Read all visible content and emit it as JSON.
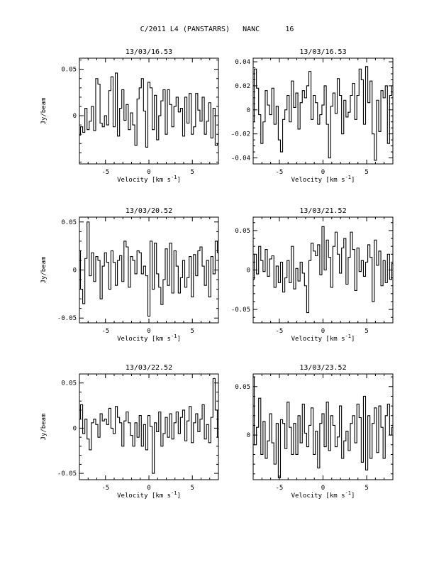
{
  "page_title": "C/2011 L4 (PANSTARRS)   NANC      16",
  "chart_data": [
    {
      "type": "line",
      "title": "13/03/16.53",
      "xlabel": "Velocity [km s",
      "xlabel_sup": "-1",
      "xlabel_end": "]",
      "ylabel": "Jy/beam",
      "xlim": [
        -8,
        8
      ],
      "ylim": [
        -0.052,
        0.062
      ],
      "xticks": [
        -5,
        0,
        5
      ],
      "xtick_labels": [
        "-5",
        "0",
        "5"
      ],
      "yticks": [
        0.05,
        0
      ],
      "ytick_labels": [
        "0.05",
        "0"
      ],
      "x": [
        -8.0,
        -7.75,
        -7.5,
        -7.25,
        -7.0,
        -6.75,
        -6.5,
        -6.25,
        -6.0,
        -5.75,
        -5.5,
        -5.25,
        -5.0,
        -4.75,
        -4.5,
        -4.25,
        -4.0,
        -3.75,
        -3.5,
        -3.25,
        -3.0,
        -2.75,
        -2.5,
        -2.25,
        -2.0,
        -1.75,
        -1.5,
        -1.25,
        -1.0,
        -0.75,
        -0.5,
        -0.25,
        0.0,
        0.25,
        0.5,
        0.75,
        1.0,
        1.25,
        1.5,
        1.75,
        2.0,
        2.25,
        2.5,
        2.75,
        3.0,
        3.25,
        3.5,
        3.75,
        4.0,
        4.25,
        4.5,
        4.75,
        5.0,
        5.25,
        5.5,
        5.75,
        6.0,
        6.25,
        6.5,
        6.75,
        7.0,
        7.25,
        7.5,
        7.75,
        8.0
      ],
      "y": [
        -0.021,
        -0.012,
        -0.018,
        0.008,
        -0.015,
        -0.006,
        0.01,
        -0.016,
        0.04,
        0.034,
        -0.008,
        -0.012,
        0.0,
        -0.01,
        0.027,
        0.042,
        -0.012,
        0.046,
        -0.022,
        0.008,
        0.028,
        -0.005,
        0.012,
        -0.015,
        0.003,
        -0.01,
        -0.032,
        0.018,
        0.03,
        0.04,
        0.005,
        -0.034,
        0.036,
        0.03,
        -0.015,
        0.022,
        -0.026,
        0.0,
        0.016,
        0.028,
        -0.02,
        0.028,
        0.012,
        -0.012,
        0.01,
        0.02,
        0.004,
        0.008,
        -0.022,
        0.02,
        -0.008,
        0.024,
        -0.02,
        -0.012,
        0.024,
        0.006,
        -0.006,
        0.02,
        -0.02,
        -0.006,
        0.014,
        -0.024,
        0.008,
        -0.032,
        -0.03
      ]
    },
    {
      "type": "line",
      "title": "13/03/16.53",
      "xlabel": "Velocity [km s",
      "xlabel_sup": "-1",
      "xlabel_end": "]",
      "ylabel": "",
      "xlim": [
        -8,
        8
      ],
      "ylim": [
        -0.045,
        0.043
      ],
      "xticks": [
        -5,
        0,
        5
      ],
      "xtick_labels": [
        "-5",
        "0",
        "5"
      ],
      "yticks": [
        0.04,
        0.02,
        0,
        -0.02,
        -0.04
      ],
      "ytick_labels": [
        "0.04",
        "0.02",
        "0",
        "-0.02",
        "-0.04"
      ],
      "x": [
        -8.0,
        -7.75,
        -7.5,
        -7.25,
        -7.0,
        -6.75,
        -6.5,
        -6.25,
        -6.0,
        -5.75,
        -5.5,
        -5.25,
        -5.0,
        -4.75,
        -4.5,
        -4.25,
        -4.0,
        -3.75,
        -3.5,
        -3.25,
        -3.0,
        -2.75,
        -2.5,
        -2.25,
        -2.0,
        -1.75,
        -1.5,
        -1.25,
        -1.0,
        -0.75,
        -0.5,
        -0.25,
        0.0,
        0.25,
        0.5,
        0.75,
        1.0,
        1.25,
        1.5,
        1.75,
        2.0,
        2.25,
        2.5,
        2.75,
        3.0,
        3.25,
        3.5,
        3.75,
        4.0,
        4.25,
        4.5,
        4.75,
        5.0,
        5.25,
        5.5,
        5.75,
        6.0,
        6.25,
        6.5,
        6.75,
        7.0,
        7.25,
        7.5,
        7.75,
        8.0
      ],
      "y": [
        -0.01,
        0.034,
        0.018,
        -0.004,
        -0.028,
        -0.01,
        0.016,
        0.004,
        -0.004,
        0.018,
        -0.012,
        0.003,
        -0.025,
        -0.035,
        -0.008,
        0.0,
        0.012,
        -0.01,
        0.024,
        0.002,
        0.014,
        -0.016,
        0.006,
        0.016,
        0.01,
        0.02,
        0.032,
        -0.008,
        0.012,
        0.006,
        -0.012,
        -0.004,
        0.004,
        0.02,
        -0.012,
        -0.04,
        0.003,
        0.014,
        -0.003,
        0.026,
        0.012,
        -0.02,
        0.008,
        -0.006,
        -0.002,
        0.012,
        0.022,
        -0.008,
        0.012,
        0.034,
        0.025,
        -0.012,
        0.036,
        0.006,
        0.024,
        -0.02,
        -0.042,
        0.008,
        -0.018,
        0.016,
        0.01,
        0.02,
        -0.028,
        0.012,
        0.02
      ]
    },
    {
      "type": "line",
      "title": "13/03/20.52",
      "xlabel": "Velocity [km s",
      "xlabel_sup": "-1",
      "xlabel_end": "]",
      "ylabel": "Jy/beam",
      "xlim": [
        -8,
        8
      ],
      "ylim": [
        -0.055,
        0.055
      ],
      "xticks": [
        -5,
        0,
        5
      ],
      "xtick_labels": [
        "-5",
        "0",
        "5"
      ],
      "yticks": [
        0.05,
        0,
        -0.05
      ],
      "ytick_labels": [
        "0.05",
        "0",
        "-0.05"
      ],
      "x": [
        -8.0,
        -7.75,
        -7.5,
        -7.25,
        -7.0,
        -6.75,
        -6.5,
        -6.25,
        -6.0,
        -5.75,
        -5.5,
        -5.25,
        -5.0,
        -4.75,
        -4.5,
        -4.25,
        -4.0,
        -3.75,
        -3.5,
        -3.25,
        -3.0,
        -2.75,
        -2.5,
        -2.25,
        -2.0,
        -1.75,
        -1.5,
        -1.25,
        -1.0,
        -0.75,
        -0.5,
        -0.25,
        0.0,
        0.25,
        0.5,
        0.75,
        1.0,
        1.25,
        1.5,
        1.75,
        2.0,
        2.25,
        2.5,
        2.75,
        3.0,
        3.25,
        3.5,
        3.75,
        4.0,
        4.25,
        4.5,
        4.75,
        5.0,
        5.25,
        5.5,
        5.75,
        6.0,
        6.25,
        6.5,
        6.75,
        7.0,
        7.25,
        7.5,
        7.75,
        8.0
      ],
      "y": [
        0.02,
        -0.02,
        -0.035,
        0.012,
        0.05,
        -0.006,
        0.018,
        -0.012,
        0.014,
        0.01,
        -0.03,
        0.004,
        0.018,
        0.008,
        -0.02,
        0.02,
        0.008,
        -0.016,
        0.01,
        0.015,
        -0.012,
        0.03,
        0.024,
        -0.018,
        0.014,
        0.01,
        -0.004,
        0.02,
        0.018,
        -0.004,
        0.004,
        -0.006,
        -0.048,
        0.03,
        -0.02,
        0.028,
        -0.004,
        -0.018,
        -0.036,
        -0.01,
        0.022,
        -0.016,
        0.028,
        -0.024,
        0.02,
        0.004,
        -0.024,
        -0.008,
        0.01,
        -0.018,
        -0.008,
        0.014,
        -0.028,
        0.016,
        -0.006,
        0.02,
        0.024,
        0.004,
        -0.016,
        0.01,
        -0.028,
        0.014,
        -0.004,
        0.03,
        0.018
      ]
    },
    {
      "type": "line",
      "title": "13/03/21.52",
      "xlabel": "Velocity [km s",
      "xlabel_sup": "-1",
      "xlabel_end": "]",
      "ylabel": "",
      "xlim": [
        -8,
        8
      ],
      "ylim": [
        -0.067,
        0.067
      ],
      "xticks": [
        -5,
        0,
        5
      ],
      "xtick_labels": [
        "-5",
        "0",
        "5"
      ],
      "yticks": [
        0.05,
        0,
        -0.05
      ],
      "ytick_labels": [
        "0.05",
        "0",
        "-0.05"
      ],
      "x": [
        -8.0,
        -7.75,
        -7.5,
        -7.25,
        -7.0,
        -6.75,
        -6.5,
        -6.25,
        -6.0,
        -5.75,
        -5.5,
        -5.25,
        -5.0,
        -4.75,
        -4.5,
        -4.25,
        -4.0,
        -3.75,
        -3.5,
        -3.25,
        -3.0,
        -2.75,
        -2.5,
        -2.25,
        -2.0,
        -1.75,
        -1.5,
        -1.25,
        -1.0,
        -0.75,
        -0.5,
        -0.25,
        0.0,
        0.25,
        0.5,
        0.75,
        1.0,
        1.25,
        1.5,
        1.75,
        2.0,
        2.25,
        2.5,
        2.75,
        3.0,
        3.25,
        3.5,
        3.75,
        4.0,
        4.25,
        4.5,
        4.75,
        5.0,
        5.25,
        5.5,
        5.75,
        6.0,
        6.25,
        6.5,
        6.75,
        7.0,
        7.25,
        7.5,
        7.75,
        8.0
      ],
      "y": [
        -0.012,
        0.02,
        -0.005,
        0.03,
        0.012,
        -0.002,
        0.026,
        -0.008,
        0.014,
        0.018,
        -0.022,
        0.005,
        -0.016,
        0.01,
        -0.028,
        -0.01,
        0.012,
        -0.016,
        0.03,
        -0.024,
        0.002,
        -0.014,
        0.01,
        -0.004,
        -0.02,
        -0.054,
        0.012,
        0.034,
        0.024,
        0.018,
        0.032,
        -0.006,
        0.055,
        0.0,
        0.038,
        0.016,
        -0.022,
        0.03,
        0.048,
        0.02,
        -0.004,
        0.028,
        0.04,
        -0.018,
        0.016,
        0.048,
        0.026,
        -0.026,
        0.028,
        -0.002,
        0.012,
        -0.008,
        0.01,
        0.032,
        0.016,
        -0.04,
        0.038,
        0.006,
        0.024,
        -0.02,
        0.012,
        -0.016,
        0.02,
        -0.012,
        0.008
      ]
    },
    {
      "type": "line",
      "title": "13/03/22.52",
      "xlabel": "Velocity [km s",
      "xlabel_sup": "-1",
      "xlabel_end": "]",
      "ylabel": "Jy/beam",
      "xlim": [
        -8,
        8
      ],
      "ylim": [
        -0.057,
        0.06
      ],
      "xticks": [
        -5,
        0,
        5
      ],
      "xtick_labels": [
        "-5",
        "0",
        "5"
      ],
      "yticks": [
        0.05,
        0,
        -0.05
      ],
      "ytick_labels": [
        "0.05",
        "0",
        "-0.05"
      ],
      "x": [
        -8.0,
        -7.75,
        -7.5,
        -7.25,
        -7.0,
        -6.75,
        -6.5,
        -6.25,
        -6.0,
        -5.75,
        -5.5,
        -5.25,
        -5.0,
        -4.75,
        -4.5,
        -4.25,
        -4.0,
        -3.75,
        -3.5,
        -3.25,
        -3.0,
        -2.75,
        -2.5,
        -2.25,
        -2.0,
        -1.75,
        -1.5,
        -1.25,
        -1.0,
        -0.75,
        -0.5,
        -0.25,
        0.0,
        0.25,
        0.5,
        0.75,
        1.0,
        1.25,
        1.5,
        1.75,
        2.0,
        2.25,
        2.5,
        2.75,
        3.0,
        3.25,
        3.5,
        3.75,
        4.0,
        4.25,
        4.5,
        4.75,
        5.0,
        5.25,
        5.5,
        5.75,
        6.0,
        6.25,
        6.5,
        6.75,
        7.0,
        7.25,
        7.5,
        7.75,
        8.0
      ],
      "y": [
        0.01,
        0.026,
        -0.006,
        0.01,
        -0.012,
        -0.024,
        0.006,
        0.01,
        0.004,
        -0.01,
        0.016,
        0.008,
        0.01,
        0.004,
        0.022,
        0.0,
        -0.006,
        0.024,
        0.012,
        0.006,
        -0.02,
        0.008,
        0.018,
        0.006,
        -0.008,
        -0.02,
        0.006,
        -0.01,
        0.014,
        -0.02,
        0.004,
        -0.024,
        0.014,
        0.002,
        -0.05,
        0.006,
        -0.004,
        0.018,
        -0.02,
        -0.006,
        0.012,
        -0.01,
        0.016,
        -0.012,
        0.006,
        0.018,
        -0.006,
        0.012,
        0.02,
        -0.014,
        0.008,
        0.024,
        -0.016,
        0.006,
        0.016,
        -0.004,
        0.01,
        0.026,
        -0.012,
        0.004,
        -0.016,
        0.012,
        0.055,
        0.02,
        -0.01
      ]
    },
    {
      "type": "line",
      "title": "13/03/23.52",
      "xlabel": "Velocity [km s",
      "xlabel_sup": "-1",
      "xlabel_end": "]",
      "ylabel": "",
      "xlim": [
        -8,
        8
      ],
      "ylim": [
        -0.046,
        0.063
      ],
      "xticks": [
        -5,
        0,
        5
      ],
      "xtick_labels": [
        "-5",
        "0",
        "5"
      ],
      "yticks": [
        0.05,
        0
      ],
      "ytick_labels": [
        "0.05",
        "0"
      ],
      "x": [
        -8.0,
        -7.75,
        -7.5,
        -7.25,
        -7.0,
        -6.75,
        -6.5,
        -6.25,
        -6.0,
        -5.75,
        -5.5,
        -5.25,
        -5.0,
        -4.75,
        -4.5,
        -4.25,
        -4.0,
        -3.75,
        -3.5,
        -3.25,
        -3.0,
        -2.75,
        -2.5,
        -2.25,
        -2.0,
        -1.75,
        -1.5,
        -1.25,
        -1.0,
        -0.75,
        -0.5,
        -0.25,
        0.0,
        0.25,
        0.5,
        0.75,
        1.0,
        1.25,
        1.5,
        1.75,
        2.0,
        2.25,
        2.5,
        2.75,
        3.0,
        3.25,
        3.5,
        3.75,
        4.0,
        4.25,
        4.5,
        4.75,
        5.0,
        5.25,
        5.5,
        5.75,
        6.0,
        6.25,
        6.5,
        6.75,
        7.0,
        7.25,
        7.5,
        7.75,
        8.0
      ],
      "y": [
        0.06,
        -0.01,
        0.008,
        0.038,
        -0.02,
        0.014,
        -0.024,
        -0.006,
        0.022,
        -0.008,
        -0.03,
        0.012,
        -0.044,
        0.016,
        0.012,
        -0.014,
        0.034,
        0.008,
        -0.02,
        0.012,
        -0.02,
        0.02,
        -0.008,
        0.032,
        0.002,
        -0.012,
        0.01,
        0.028,
        -0.02,
        0.004,
        -0.034,
        0.012,
        0.022,
        -0.012,
        0.034,
        -0.016,
        0.02,
        0.01,
        -0.012,
        -0.002,
        0.03,
        -0.024,
        -0.006,
        0.004,
        -0.016,
        0.012,
        0.02,
        -0.008,
        0.032,
        0.018,
        -0.028,
        0.04,
        -0.036,
        0.02,
        -0.024,
        0.012,
        0.028,
        -0.018,
        0.03,
        0.008,
        -0.024,
        0.02,
        0.032,
        0.0,
        0.008
      ]
    }
  ]
}
